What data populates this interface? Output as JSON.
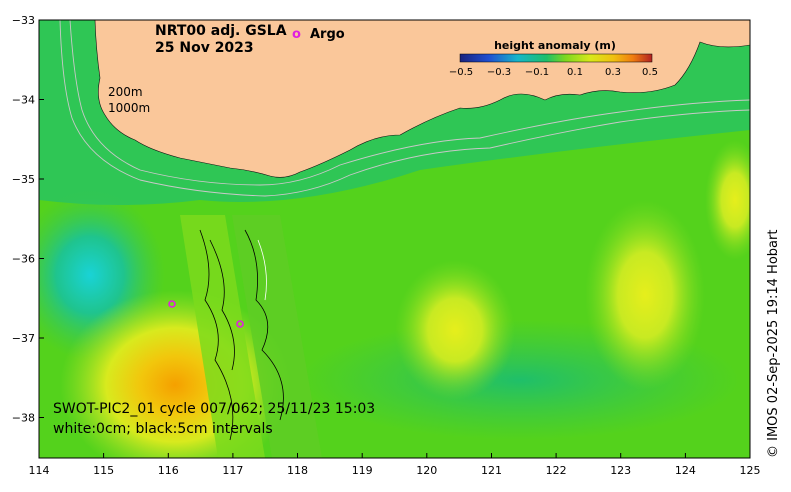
{
  "title": {
    "product": "NRT00 adj. GSLA",
    "date": "25 Nov 2023"
  },
  "legend": {
    "argo_marker": "o",
    "argo_label": "Argo",
    "isobath_200": "200m",
    "isobath_1000": "1000m"
  },
  "colorbar": {
    "title": "height anomaly (m)",
    "ticks": [
      "−0.5",
      "−0.3",
      "−0.1",
      "0.1",
      "0.3",
      "0.5"
    ],
    "colors": [
      "#1a237e",
      "#1f4fd1",
      "#17b6c9",
      "#1fbf6a",
      "#7fd81f",
      "#d9e81a",
      "#f0c010",
      "#f07d10",
      "#b22222"
    ]
  },
  "axes": {
    "x_ticks": [
      "114",
      "115",
      "116",
      "117",
      "118",
      "119",
      "120",
      "121",
      "122",
      "123",
      "124",
      "125"
    ],
    "y_ticks": [
      "−33",
      "−34",
      "−35",
      "−36",
      "−37",
      "−38"
    ]
  },
  "swath": {
    "line1": "SWOT-PIC2_01 cycle 007/062; 25/11/23 15:03",
    "line2": "white:0cm; black:5cm intervals"
  },
  "credit": "© IMOS 02-Sep-2025 19:14 Hobart",
  "colors": {
    "land": "#fac79a",
    "sea_base": "#54d21c",
    "argo": "#e020e0"
  }
}
